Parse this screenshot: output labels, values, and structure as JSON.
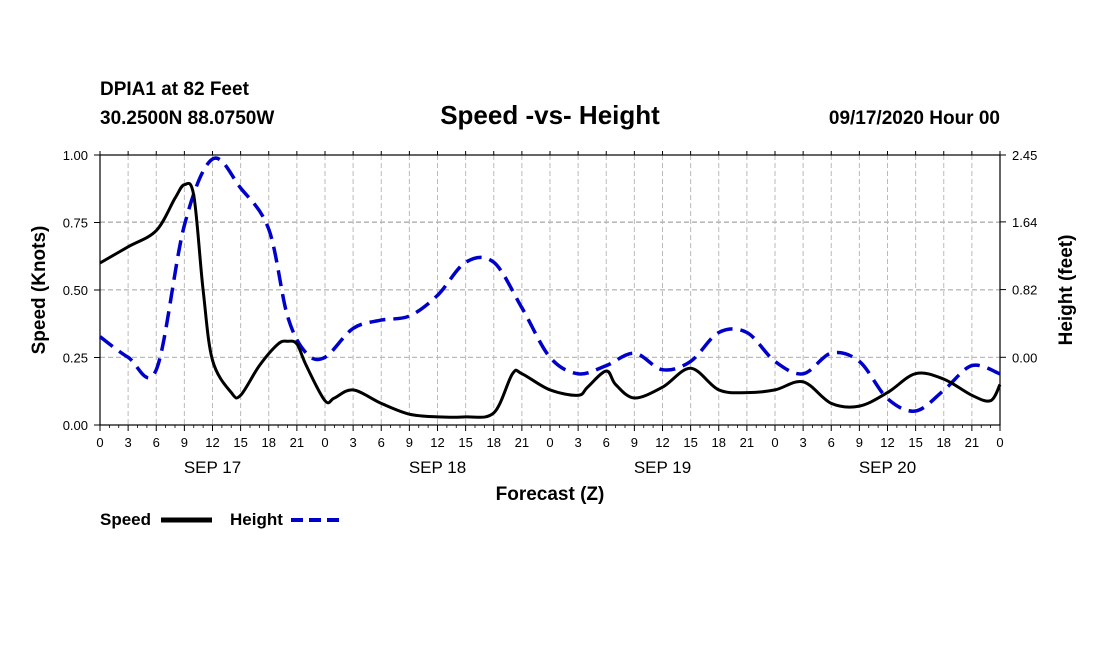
{
  "header": {
    "station": "DPIA1 at 82 Feet",
    "coords": "30.2500N 88.0750W",
    "title": "Speed -vs- Height",
    "run": "09/17/2020 Hour 00"
  },
  "chart_data": {
    "type": "line",
    "title": "Speed -vs- Height",
    "xlabel": "Forecast (Z)",
    "ylabel_left": "Speed (Knots)",
    "ylabel_right": "Height (feet)",
    "x_unit": "forecast hours from 09/17/2020 00Z",
    "xlim": [
      0,
      96
    ],
    "ylim_left": [
      0,
      1
    ],
    "ylim_right": [
      -0.82,
      2.45
    ],
    "x_tick_labels": [
      "0",
      "3",
      "6",
      "9",
      "12",
      "15",
      "18",
      "21",
      "0",
      "3",
      "6",
      "9",
      "12",
      "15",
      "18",
      "21",
      "0",
      "3",
      "6",
      "9",
      "12",
      "15",
      "18",
      "21",
      "0",
      "3",
      "6",
      "9",
      "12",
      "15",
      "18",
      "21",
      "0"
    ],
    "day_labels": [
      {
        "label": "SEP 17",
        "x": 12
      },
      {
        "label": "SEP 18",
        "x": 36
      },
      {
        "label": "SEP 19",
        "x": 60
      },
      {
        "label": "SEP 20",
        "x": 84
      }
    ],
    "left_tick_labels": [
      "0.00",
      "0.25",
      "0.50",
      "0.75",
      "1.00"
    ],
    "left_ticks": [
      0,
      0.25,
      0.5,
      0.75,
      1.0
    ],
    "right_tick_labels": [
      "0.00",
      "0.82",
      "1.64",
      "2.45"
    ],
    "right_ticks": [
      0,
      0.82,
      1.64,
      2.45
    ],
    "grid": true,
    "series": [
      {
        "name": "Speed",
        "axis": "left",
        "color": "#000000",
        "style": "solid",
        "x": [
          0,
          3,
          6,
          8,
          9,
          10,
          11,
          12,
          14,
          15,
          17,
          19,
          20,
          21,
          22,
          24,
          25,
          27,
          30,
          33,
          36,
          39,
          42,
          44,
          45,
          48,
          51,
          52,
          54,
          55,
          57,
          60,
          63,
          66,
          69,
          72,
          75,
          78,
          81,
          84,
          87,
          90,
          93,
          95,
          96
        ],
        "y": [
          0.6,
          0.66,
          0.72,
          0.84,
          0.89,
          0.85,
          0.5,
          0.24,
          0.12,
          0.11,
          0.22,
          0.3,
          0.31,
          0.3,
          0.22,
          0.09,
          0.1,
          0.13,
          0.08,
          0.04,
          0.03,
          0.03,
          0.045,
          0.19,
          0.19,
          0.13,
          0.11,
          0.14,
          0.2,
          0.15,
          0.1,
          0.14,
          0.21,
          0.13,
          0.12,
          0.13,
          0.16,
          0.08,
          0.07,
          0.12,
          0.19,
          0.17,
          0.11,
          0.09,
          0.15
        ]
      },
      {
        "name": "Height",
        "axis": "right",
        "color": "#0000cc",
        "style": "dashed",
        "x": [
          0,
          3,
          6,
          9,
          12,
          15,
          18,
          20,
          22,
          24,
          27,
          30,
          33,
          36,
          39,
          42,
          45,
          48,
          51,
          54,
          57,
          60,
          63,
          66,
          69,
          72,
          75,
          78,
          81,
          84,
          87,
          90,
          93,
          96
        ],
        "y": [
          0.25,
          0.0,
          -0.15,
          1.6,
          2.4,
          2.05,
          1.55,
          0.5,
          0.05,
          0.0,
          0.35,
          0.45,
          0.5,
          0.75,
          1.15,
          1.15,
          0.6,
          0.0,
          -0.2,
          -0.1,
          0.05,
          -0.15,
          -0.05,
          0.3,
          0.3,
          -0.05,
          -0.2,
          0.05,
          -0.05,
          -0.5,
          -0.65,
          -0.4,
          -0.1,
          -0.2
        ]
      }
    ],
    "legend": {
      "placement": "bottom-left",
      "entries": [
        {
          "label": "Speed",
          "color": "#000000",
          "style": "solid"
        },
        {
          "label": "Height",
          "color": "#0000cc",
          "style": "dashed"
        }
      ]
    }
  }
}
